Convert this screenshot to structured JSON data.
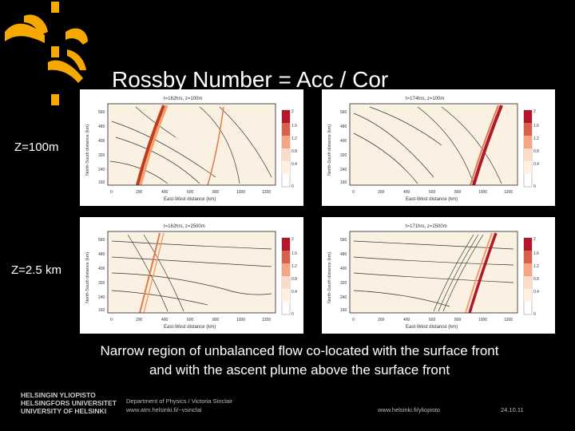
{
  "slide": {
    "title": "Rossby Number = Acc / Cor",
    "row_labels": [
      "Z=100m",
      "Z=2.5 km"
    ],
    "caption_line1": "Narrow region of unbalanced flow co-located with the surface front",
    "caption_line2": "and with the ascent plume above the surface front"
  },
  "panels": [
    {
      "subtitle": "t=162hrs, z=100m",
      "xlabel": "East-West distance (km)",
      "ylabel": "North-South distance (km)"
    },
    {
      "subtitle": "t=174hrs, z=100m",
      "xlabel": "East-West distance (km)",
      "ylabel": "North-South distance (km)"
    },
    {
      "subtitle": "t=162hrs, z=2500m",
      "xlabel": "East-West distance (km)",
      "ylabel": "North-South distance (km)"
    },
    {
      "subtitle": "t=171hrs, z=2500m",
      "xlabel": "East-West distance (km)",
      "ylabel": "North-South distance (km)"
    }
  ],
  "axes": {
    "x_ticks": [
      "0",
      "200",
      "400",
      "600",
      "800",
      "1000",
      "1200"
    ],
    "y_ticks": [
      "560",
      "480",
      "400",
      "320",
      "240",
      "160"
    ],
    "colorbar_ticks": [
      "2",
      "1.6",
      "1.2",
      "0.8",
      "0.4",
      "0"
    ],
    "colorbar_colors": [
      "#b2182b",
      "#d6604d",
      "#f4a582",
      "#fddbc7",
      "#fff0e0",
      "#ffffff"
    ]
  },
  "footer": {
    "university": [
      "HELSINGIN YLIOPISTO",
      "HELSINGFORS UNIVERSITET",
      "UNIVERSITY OF HELSINKI"
    ],
    "department": "Department of Physics / Victoria Sinclair",
    "url_personal": "www.atm.helsinki.fi/~vsinclai",
    "url_university": "www.helsinki.fi/yliopisto",
    "date": "24.10.11"
  },
  "colors": {
    "accent": "#f5a800",
    "background": "#000000"
  }
}
